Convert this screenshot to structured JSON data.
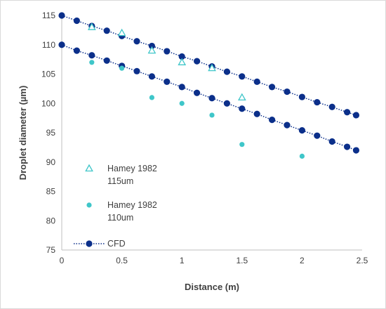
{
  "chart_data": {
    "type": "scatter",
    "title": "",
    "xlabel": "Distance (m)",
    "ylabel": "Droplet diameter (µm)",
    "xlim": [
      0,
      2.5
    ],
    "ylim": [
      75,
      115
    ],
    "xticks": [
      "0",
      "0.5",
      "1",
      "1.5",
      "2",
      "2.5"
    ],
    "yticks": [
      "75",
      "80",
      "85",
      "90",
      "95",
      "100",
      "105",
      "110",
      "115"
    ],
    "grid": false,
    "legend_position": "left",
    "colors": {
      "hamey": "#3fc6c9",
      "cfd": "#0b2f8a",
      "axis": "#bfbfbf",
      "text": "#404040"
    },
    "series": [
      {
        "name": "Hamey 1982 115um",
        "legend_lines": [
          "Hamey 1982",
          "115um"
        ],
        "marker": "triangle-open",
        "x": [
          0.25,
          0.5,
          0.75,
          1.0,
          1.25,
          1.5
        ],
        "y": [
          113,
          112,
          109,
          107,
          106,
          101
        ]
      },
      {
        "name": "Hamey 1982 110um",
        "legend_lines": [
          "Hamey 1982",
          "110um"
        ],
        "marker": "circle-filled",
        "x": [
          0.25,
          0.5,
          0.75,
          1.0,
          1.25,
          1.5,
          2.0
        ],
        "y": [
          107,
          106,
          101,
          100,
          98,
          93,
          91
        ]
      },
      {
        "name": "CFD",
        "legend_lines": [
          "CFD"
        ],
        "marker": "circle-filled-dotted-line",
        "lines": [
          {
            "x": [
              0,
              0.125,
              0.25,
              0.375,
              0.5,
              0.625,
              0.75,
              0.875,
              1.0,
              1.125,
              1.25,
              1.375,
              1.5,
              1.625,
              1.75,
              1.875,
              2.0,
              2.125,
              2.25,
              2.375,
              2.45
            ],
            "y": [
              115,
              114.1,
              113.2,
              112.4,
              111.5,
              110.6,
              109.8,
              108.9,
              108.0,
              107.2,
              106.3,
              105.4,
              104.6,
              103.7,
              102.8,
              102.0,
              101.1,
              100.2,
              99.4,
              98.5,
              98.0
            ]
          },
          {
            "x": [
              0,
              0.125,
              0.25,
              0.375,
              0.5,
              0.625,
              0.75,
              0.875,
              1.0,
              1.125,
              1.25,
              1.375,
              1.5,
              1.625,
              1.75,
              1.875,
              2.0,
              2.125,
              2.25,
              2.375,
              2.45
            ],
            "y": [
              110,
              109.0,
              108.2,
              107.3,
              106.4,
              105.5,
              104.6,
              103.7,
              102.8,
              101.8,
              100.9,
              100.0,
              99.1,
              98.2,
              97.2,
              96.3,
              95.4,
              94.5,
              93.5,
              92.6,
              92.0
            ]
          }
        ]
      }
    ]
  }
}
